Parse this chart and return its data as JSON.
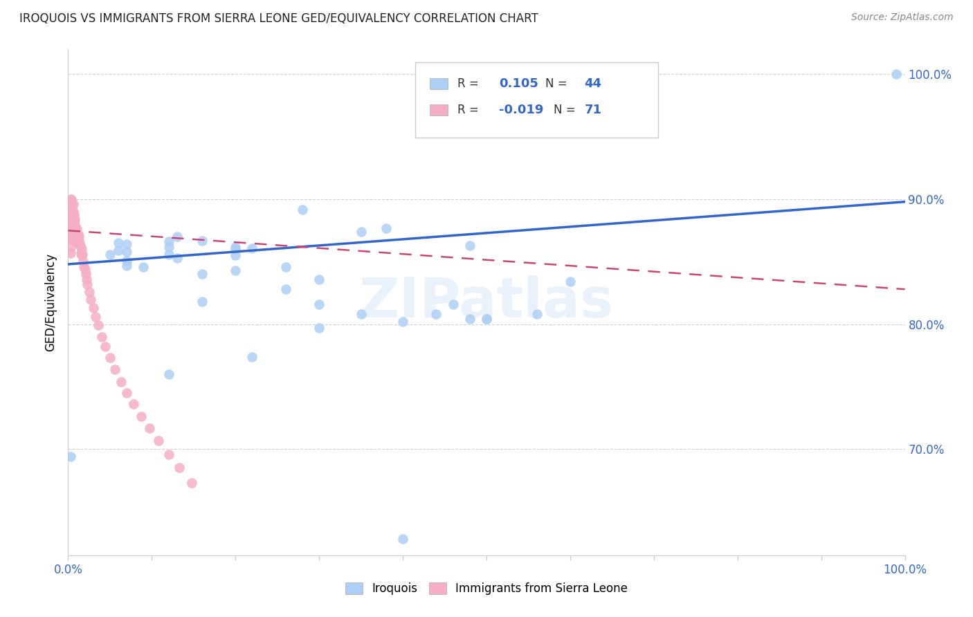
{
  "title": "IROQUOIS VS IMMIGRANTS FROM SIERRA LEONE GED/EQUIVALENCY CORRELATION CHART",
  "source": "Source: ZipAtlas.com",
  "ylabel": "GED/Equivalency",
  "xlim": [
    0.0,
    1.0
  ],
  "ylim": [
    0.615,
    1.02
  ],
  "yticks": [
    0.7,
    0.8,
    0.9,
    1.0
  ],
  "ytick_labels": [
    "70.0%",
    "80.0%",
    "90.0%",
    "100.0%"
  ],
  "xticks": [
    0.0,
    0.1,
    0.2,
    0.3,
    0.4,
    0.5,
    0.6,
    0.7,
    0.8,
    0.9,
    1.0
  ],
  "xtick_labels": [
    "0.0%",
    "",
    "",
    "",
    "",
    "",
    "",
    "",
    "",
    "",
    "100.0%"
  ],
  "blue_color": "#aecff5",
  "pink_color": "#f5aec4",
  "blue_line_color": "#3366cc",
  "pink_line_color": "#cc4477",
  "legend_label_blue": "Iroquois",
  "legend_label_pink": "Immigrants from Sierra Leone",
  "watermark": "ZIPatlas",
  "blue_scatter_x": [
    0.003,
    0.13,
    0.28,
    0.38,
    0.35,
    0.12,
    0.13,
    0.16,
    0.2,
    0.12,
    0.07,
    0.07,
    0.07,
    0.06,
    0.06,
    0.05,
    0.07,
    0.09,
    0.2,
    0.2,
    0.16,
    0.26,
    0.3,
    0.26,
    0.35,
    0.3,
    0.12,
    0.22,
    0.16,
    0.22,
    0.12,
    0.2,
    0.3,
    0.44,
    0.5,
    0.5,
    0.6,
    0.56,
    0.4,
    0.48,
    0.99,
    0.48,
    0.46,
    0.4
  ],
  "blue_scatter_y": [
    0.694,
    0.87,
    0.892,
    0.877,
    0.874,
    0.862,
    0.853,
    0.867,
    0.862,
    0.856,
    0.858,
    0.847,
    0.864,
    0.865,
    0.859,
    0.856,
    0.851,
    0.846,
    0.855,
    0.843,
    0.818,
    0.846,
    0.797,
    0.828,
    0.808,
    0.816,
    0.76,
    0.774,
    0.84,
    0.861,
    0.866,
    0.86,
    0.836,
    0.808,
    0.804,
    0.804,
    0.834,
    0.808,
    0.802,
    0.804,
    1.0,
    0.863,
    0.816,
    0.628
  ],
  "pink_scatter_x": [
    0.003,
    0.003,
    0.003,
    0.003,
    0.003,
    0.003,
    0.003,
    0.003,
    0.004,
    0.004,
    0.004,
    0.004,
    0.005,
    0.005,
    0.005,
    0.005,
    0.005,
    0.005,
    0.006,
    0.006,
    0.006,
    0.006,
    0.006,
    0.006,
    0.007,
    0.007,
    0.007,
    0.007,
    0.008,
    0.008,
    0.009,
    0.009,
    0.01,
    0.01,
    0.01,
    0.011,
    0.011,
    0.012,
    0.012,
    0.013,
    0.013,
    0.014,
    0.015,
    0.015,
    0.016,
    0.016,
    0.017,
    0.018,
    0.019,
    0.02,
    0.021,
    0.022,
    0.023,
    0.025,
    0.027,
    0.03,
    0.033,
    0.036,
    0.04,
    0.044,
    0.05,
    0.056,
    0.063,
    0.07,
    0.078,
    0.087,
    0.097,
    0.108,
    0.12,
    0.133,
    0.148
  ],
  "pink_scatter_y": [
    0.9,
    0.892,
    0.885,
    0.879,
    0.873,
    0.868,
    0.862,
    0.857,
    0.9,
    0.893,
    0.886,
    0.88,
    0.895,
    0.89,
    0.884,
    0.879,
    0.874,
    0.868,
    0.896,
    0.89,
    0.885,
    0.88,
    0.875,
    0.87,
    0.888,
    0.882,
    0.877,
    0.872,
    0.884,
    0.879,
    0.878,
    0.872,
    0.876,
    0.87,
    0.865,
    0.872,
    0.867,
    0.872,
    0.865,
    0.87,
    0.864,
    0.865,
    0.862,
    0.857,
    0.86,
    0.855,
    0.856,
    0.85,
    0.846,
    0.844,
    0.84,
    0.836,
    0.832,
    0.826,
    0.82,
    0.813,
    0.806,
    0.799,
    0.79,
    0.782,
    0.773,
    0.764,
    0.754,
    0.745,
    0.736,
    0.726,
    0.717,
    0.707,
    0.696,
    0.685,
    0.673
  ],
  "blue_trend_x": [
    0.0,
    1.0
  ],
  "blue_trend_y": [
    0.848,
    0.898
  ],
  "pink_trend_x": [
    0.0,
    1.0
  ],
  "pink_trend_y": [
    0.875,
    0.828
  ]
}
